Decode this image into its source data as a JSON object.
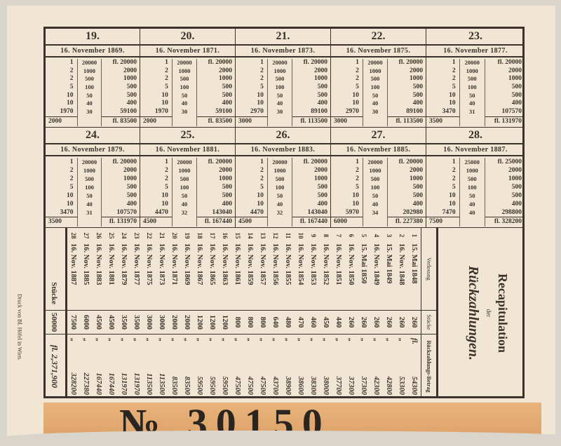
{
  "colors": {
    "paper": "#f0e6d3",
    "ink": "#3b332b",
    "strip": "#e3a96f"
  },
  "tables": [
    {
      "number": "19.",
      "date": "16. November 1869.",
      "rows": [
        [
          "1",
          "20000",
          "fl. 20000"
        ],
        [
          "2",
          "1000",
          "2000"
        ],
        [
          "2",
          "500",
          "1000"
        ],
        [
          "5",
          "100",
          "500"
        ],
        [
          "10",
          "50",
          "500"
        ],
        [
          "10",
          "40",
          "400"
        ],
        [
          "1970",
          "30",
          "59100"
        ]
      ],
      "total_count": "2000",
      "total_amount": "fl. 83500"
    },
    {
      "number": "20.",
      "date": "16. November 1871.",
      "rows": [
        [
          "1",
          "20000",
          "fl. 20000"
        ],
        [
          "2",
          "1000",
          "2000"
        ],
        [
          "2",
          "500",
          "1000"
        ],
        [
          "5",
          "100",
          "500"
        ],
        [
          "10",
          "50",
          "500"
        ],
        [
          "10",
          "40",
          "400"
        ],
        [
          "1970",
          "30",
          "59100"
        ]
      ],
      "total_count": "2000",
      "total_amount": "fl. 83500"
    },
    {
      "number": "21.",
      "date": "16. November 1873.",
      "rows": [
        [
          "1",
          "20000",
          "fl. 20000"
        ],
        [
          "2",
          "1000",
          "2000"
        ],
        [
          "2",
          "500",
          "1000"
        ],
        [
          "5",
          "100",
          "500"
        ],
        [
          "10",
          "50",
          "500"
        ],
        [
          "10",
          "40",
          "400"
        ],
        [
          "2970",
          "30",
          "89100"
        ]
      ],
      "total_count": "3000",
      "total_amount": "fl. 113500"
    },
    {
      "number": "22.",
      "date": "16. November 1875.",
      "rows": [
        [
          "1",
          "20000",
          "fl. 20000"
        ],
        [
          "2",
          "1000",
          "2000"
        ],
        [
          "2",
          "500",
          "1000"
        ],
        [
          "5",
          "100",
          "500"
        ],
        [
          "10",
          "50",
          "500"
        ],
        [
          "10",
          "40",
          "400"
        ],
        [
          "2970",
          "30",
          "89100"
        ]
      ],
      "total_count": "3000",
      "total_amount": "fl. 113500"
    },
    {
      "number": "23.",
      "date": "16. November 1877.",
      "rows": [
        [
          "1",
          "20000",
          "fl. 20000"
        ],
        [
          "2",
          "1000",
          "2000"
        ],
        [
          "2",
          "500",
          "1000"
        ],
        [
          "5",
          "100",
          "500"
        ],
        [
          "10",
          "50",
          "500"
        ],
        [
          "10",
          "40",
          "400"
        ],
        [
          "3470",
          "31",
          "107570"
        ]
      ],
      "total_count": "3500",
      "total_amount": "fl. 131970"
    },
    {
      "number": "24.",
      "date": "16. November 1879.",
      "rows": [
        [
          "1",
          "20000",
          "fl. 20000"
        ],
        [
          "2",
          "1000",
          "2000"
        ],
        [
          "2",
          "500",
          "1000"
        ],
        [
          "5",
          "100",
          "500"
        ],
        [
          "10",
          "50",
          "500"
        ],
        [
          "10",
          "40",
          "400"
        ],
        [
          "3470",
          "31",
          "107570"
        ]
      ],
      "total_count": "3500",
      "total_amount": "fl. 131970"
    },
    {
      "number": "25.",
      "date": "16. November 1881.",
      "rows": [
        [
          "1",
          "20000",
          "fl. 20000"
        ],
        [
          "2",
          "1000",
          "2000"
        ],
        [
          "2",
          "500",
          "1000"
        ],
        [
          "5",
          "100",
          "500"
        ],
        [
          "10",
          "50",
          "500"
        ],
        [
          "10",
          "40",
          "400"
        ],
        [
          "4470",
          "32",
          "143040"
        ]
      ],
      "total_count": "4500",
      "total_amount": "fl. 167440"
    },
    {
      "number": "26.",
      "date": "16. November 1883.",
      "rows": [
        [
          "1",
          "20000",
          "fl. 20000"
        ],
        [
          "2",
          "1000",
          "2000"
        ],
        [
          "2",
          "500",
          "1000"
        ],
        [
          "5",
          "100",
          "500"
        ],
        [
          "10",
          "50",
          "500"
        ],
        [
          "10",
          "40",
          "400"
        ],
        [
          "4470",
          "32",
          "143040"
        ]
      ],
      "total_count": "4500",
      "total_amount": "fl. 167440"
    },
    {
      "number": "27.",
      "date": "16. November 1885.",
      "rows": [
        [
          "1",
          "20000",
          "fl. 20000"
        ],
        [
          "2",
          "1000",
          "2000"
        ],
        [
          "2",
          "500",
          "1000"
        ],
        [
          "5",
          "100",
          "500"
        ],
        [
          "10",
          "50",
          "500"
        ],
        [
          "10",
          "40",
          "400"
        ],
        [
          "5970",
          "34",
          "202980"
        ]
      ],
      "total_count": "6000",
      "total_amount": "fl. 227380"
    },
    {
      "number": "28.",
      "date": "16. November 1887.",
      "rows": [
        [
          "1",
          "25000",
          "fl. 25000"
        ],
        [
          "2",
          "1000",
          "2000"
        ],
        [
          "2",
          "500",
          "1000"
        ],
        [
          "5",
          "100",
          "500"
        ],
        [
          "10",
          "50",
          "500"
        ],
        [
          "10",
          "40",
          "400"
        ],
        [
          "7470",
          "40",
          "298800"
        ]
      ],
      "total_count": "7500",
      "total_amount": "fl. 328200"
    }
  ],
  "recap": {
    "title": "Recapitulation",
    "title_der": "der",
    "title_sub": "Rückzahlungen.",
    "headers": {
      "drawing": "Verlosung",
      "pieces": "Stücke",
      "amount": "Rückzahlungs-Betrag"
    },
    "currency": "fl.",
    "ditto": "„",
    "rows": [
      [
        "1",
        "15. Mai 1848",
        "260",
        "54300"
      ],
      [
        "2",
        "16. Nov. 1848",
        "260",
        "53300"
      ],
      [
        "3",
        "15. Mai 1849",
        "260",
        "42800"
      ],
      [
        "4",
        "16. Nov. 1849",
        "260",
        "42300"
      ],
      [
        "5",
        "15. Mai 1850",
        "260",
        "37300"
      ],
      [
        "6",
        "16. Nov. 1850",
        "260",
        "37300"
      ],
      [
        "7",
        "16. Nov. 1851",
        "440",
        "37700"
      ],
      [
        "8",
        "16. Nov. 1852",
        "450",
        "38000"
      ],
      [
        "9",
        "16. Nov. 1853",
        "460",
        "38300"
      ],
      [
        "10",
        "16. Nov. 1854",
        "470",
        "38600"
      ],
      [
        "11",
        "16. Nov. 1855",
        "480",
        "38900"
      ],
      [
        "12",
        "16. Nov. 1856",
        "640",
        "43700"
      ],
      [
        "13",
        "16. Nov. 1857",
        "800",
        "47500"
      ],
      [
        "14",
        "16. Nov. 1859",
        "800",
        "47500"
      ],
      [
        "15",
        "16. Nov. 1861",
        "800",
        "47500"
      ],
      [
        "16",
        "16. Nov. 1863",
        "1200",
        "59500"
      ],
      [
        "17",
        "16. Nov. 1865",
        "1200",
        "59500"
      ],
      [
        "18",
        "16. Nov. 1867",
        "1200",
        "59500"
      ],
      [
        "19",
        "16. Nov. 1869",
        "2000",
        "83500"
      ],
      [
        "20",
        "16. Nov. 1871",
        "2000",
        "83500"
      ],
      [
        "21",
        "16. Nov. 1873",
        "3000",
        "113500"
      ],
      [
        "22",
        "16. Nov. 1875",
        "3000",
        "113500"
      ],
      [
        "23",
        "16. Nov. 1877",
        "3500",
        "131970"
      ],
      [
        "24",
        "16. Nov. 1879",
        "3500",
        "131970"
      ],
      [
        "25",
        "16. Nov. 1881",
        "4500",
        "167440"
      ],
      [
        "26",
        "16. Nov. 1883",
        "4500",
        "167440"
      ],
      [
        "27",
        "16. Nov. 1885",
        "6000",
        "227380"
      ],
      [
        "28",
        "16. Nov. 1887",
        "7500",
        "328200"
      ]
    ],
    "total_label": "Stücke",
    "total_pieces": "50000",
    "total_amount": "fl. 2,371,900"
  },
  "printer": "Druck von Bl. Höfel in Wien.",
  "serial": "№ 30150"
}
